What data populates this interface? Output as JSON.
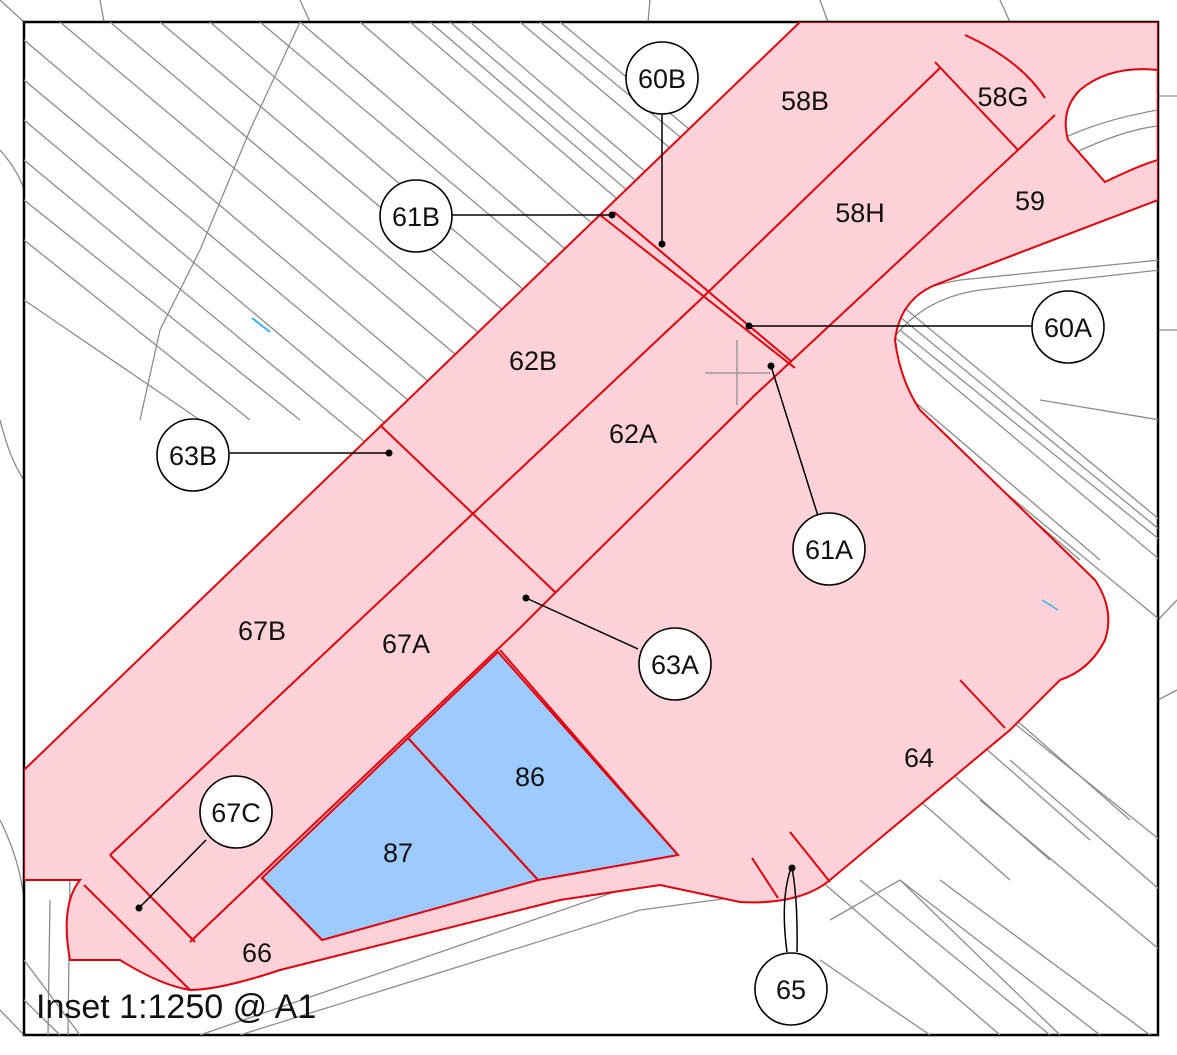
{
  "map": {
    "inset_label": "Inset 1:1250 @ A1",
    "parcels": [
      {
        "id": "58B",
        "label": "58B"
      },
      {
        "id": "58G",
        "label": "58G"
      },
      {
        "id": "58H",
        "label": "58H"
      },
      {
        "id": "59",
        "label": "59"
      },
      {
        "id": "62B",
        "label": "62B"
      },
      {
        "id": "62A",
        "label": "62A"
      },
      {
        "id": "67B",
        "label": "67B"
      },
      {
        "id": "67A",
        "label": "67A"
      },
      {
        "id": "86",
        "label": "86"
      },
      {
        "id": "87",
        "label": "87"
      },
      {
        "id": "66",
        "label": "66"
      },
      {
        "id": "64",
        "label": "64"
      }
    ],
    "callouts": [
      {
        "id": "60B",
        "label": "60B"
      },
      {
        "id": "61B",
        "label": "61B"
      },
      {
        "id": "60A",
        "label": "60A"
      },
      {
        "id": "63B",
        "label": "63B"
      },
      {
        "id": "61A",
        "label": "61A"
      },
      {
        "id": "63A",
        "label": "63A"
      },
      {
        "id": "67C",
        "label": "67C"
      },
      {
        "id": "65",
        "label": "65"
      }
    ],
    "colors": {
      "parcel_fill": "#ffd1d9",
      "highlight_fill": "#9ecbff",
      "boundary": "#e3000b",
      "basemap": "#8c8c8c"
    }
  }
}
